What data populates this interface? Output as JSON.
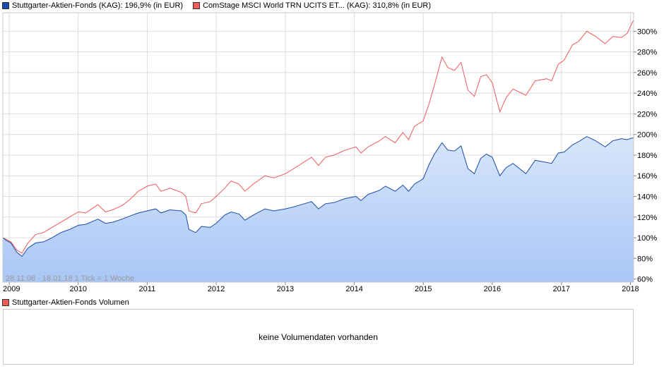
{
  "legend": {
    "series_a_label": "Stuttgarter-Aktien-Fonds (KAG): 196,9% (in EUR)",
    "series_b_label": "ComStage MSCI World TRN UCITS ET... (KAG): 310,8% (in EUR)"
  },
  "info_text": "28.11.08 - 18.01.18   1 Tick = 1 Woche",
  "volume": {
    "legend_label": "Stuttgarter-Aktien-Fonds Volumen",
    "empty_text": "keine Volumendaten vorhanden"
  },
  "colors": {
    "series_a": "#1a4aa8",
    "series_a_fill_top": "#d7e6fb",
    "series_a_fill_bottom": "#a9c6f6",
    "series_b": "#ee5a5a",
    "grid": "#dcdcdc"
  },
  "chart_data": {
    "type": "line",
    "x_start": "2008-11-28",
    "x_end": "2018-01-18",
    "x_tick_labels": [
      "2009",
      "2010",
      "2011",
      "2012",
      "2013",
      "2014",
      "2015",
      "2016",
      "2017",
      "2018"
    ],
    "y_tick_labels": [
      "60%",
      "80%",
      "100%",
      "120%",
      "140%",
      "160%",
      "180%",
      "200%",
      "220%",
      "240%",
      "260%",
      "280%",
      "300%"
    ],
    "ylim": [
      57,
      318
    ],
    "grid": true,
    "legend_position": "top-left",
    "series": [
      {
        "name": "Stuttgarter-Aktien-Fonds (KAG)",
        "style": "area",
        "points": [
          [
            "2008-11-28",
            100
          ],
          [
            "2008-12-20",
            97
          ],
          [
            "2009-01-10",
            95
          ],
          [
            "2009-02-10",
            86
          ],
          [
            "2009-03-09",
            82
          ],
          [
            "2009-04-10",
            90
          ],
          [
            "2009-05-20",
            95
          ],
          [
            "2009-07-01",
            96
          ],
          [
            "2009-08-15",
            100
          ],
          [
            "2009-10-01",
            105
          ],
          [
            "2009-11-15",
            108
          ],
          [
            "2010-01-01",
            112
          ],
          [
            "2010-02-10",
            113
          ],
          [
            "2010-04-15",
            118
          ],
          [
            "2010-05-25",
            114
          ],
          [
            "2010-07-01",
            115
          ],
          [
            "2010-08-20",
            118
          ],
          [
            "2010-10-01",
            121
          ],
          [
            "2010-11-15",
            124
          ],
          [
            "2011-01-01",
            126
          ],
          [
            "2011-02-15",
            128
          ],
          [
            "2011-03-15",
            124
          ],
          [
            "2011-05-01",
            127
          ],
          [
            "2011-07-01",
            126
          ],
          [
            "2011-07-25",
            122
          ],
          [
            "2011-08-10",
            108
          ],
          [
            "2011-09-15",
            105
          ],
          [
            "2011-10-15",
            111
          ],
          [
            "2011-12-01",
            110
          ],
          [
            "2012-01-01",
            114
          ],
          [
            "2012-02-15",
            122
          ],
          [
            "2012-03-20",
            125
          ],
          [
            "2012-05-01",
            123
          ],
          [
            "2012-06-01",
            117
          ],
          [
            "2012-07-15",
            122
          ],
          [
            "2012-09-15",
            128
          ],
          [
            "2012-11-01",
            126
          ],
          [
            "2013-01-01",
            128
          ],
          [
            "2013-02-15",
            130
          ],
          [
            "2013-05-20",
            135
          ],
          [
            "2013-06-25",
            128
          ],
          [
            "2013-08-01",
            133
          ],
          [
            "2013-09-15",
            134
          ],
          [
            "2013-11-15",
            138
          ],
          [
            "2014-01-10",
            140
          ],
          [
            "2014-02-05",
            136
          ],
          [
            "2014-03-15",
            142
          ],
          [
            "2014-05-15",
            146
          ],
          [
            "2014-06-15",
            150
          ],
          [
            "2014-08-05",
            145
          ],
          [
            "2014-09-15",
            151
          ],
          [
            "2014-10-15",
            145
          ],
          [
            "2014-11-15",
            152
          ],
          [
            "2014-12-31",
            157
          ],
          [
            "2015-02-01",
            171
          ],
          [
            "2015-03-01",
            181
          ],
          [
            "2015-04-10",
            192
          ],
          [
            "2015-05-10",
            185
          ],
          [
            "2015-06-15",
            184
          ],
          [
            "2015-07-20",
            189
          ],
          [
            "2015-08-25",
            167
          ],
          [
            "2015-09-28",
            162
          ],
          [
            "2015-11-01",
            177
          ],
          [
            "2015-12-01",
            181
          ],
          [
            "2016-01-01",
            178
          ],
          [
            "2016-02-10",
            160
          ],
          [
            "2016-03-15",
            168
          ],
          [
            "2016-04-20",
            172
          ],
          [
            "2016-06-27",
            162
          ],
          [
            "2016-08-15",
            175
          ],
          [
            "2016-10-15",
            173
          ],
          [
            "2016-11-10",
            172
          ],
          [
            "2016-12-15",
            182
          ],
          [
            "2017-01-15",
            183
          ],
          [
            "2017-03-01",
            190
          ],
          [
            "2017-04-01",
            193
          ],
          [
            "2017-05-15",
            198
          ],
          [
            "2017-07-01",
            194
          ],
          [
            "2017-08-20",
            188
          ],
          [
            "2017-10-01",
            194
          ],
          [
            "2017-11-15",
            196
          ],
          [
            "2017-12-15",
            195
          ],
          [
            "2018-01-18",
            197
          ]
        ]
      },
      {
        "name": "ComStage MSCI World TRN UCITS ET... (KAG)",
        "style": "line",
        "points": [
          [
            "2008-11-28",
            100
          ],
          [
            "2008-12-20",
            98
          ],
          [
            "2009-01-10",
            96
          ],
          [
            "2009-02-10",
            88
          ],
          [
            "2009-03-09",
            85
          ],
          [
            "2009-04-10",
            95
          ],
          [
            "2009-05-20",
            103
          ],
          [
            "2009-07-01",
            105
          ],
          [
            "2009-08-15",
            110
          ],
          [
            "2009-10-01",
            115
          ],
          [
            "2009-11-15",
            120
          ],
          [
            "2010-01-01",
            125
          ],
          [
            "2010-02-10",
            124
          ],
          [
            "2010-04-15",
            132
          ],
          [
            "2010-05-25",
            125
          ],
          [
            "2010-07-01",
            127
          ],
          [
            "2010-08-20",
            131
          ],
          [
            "2010-10-01",
            137
          ],
          [
            "2010-11-15",
            145
          ],
          [
            "2011-01-01",
            150
          ],
          [
            "2011-02-15",
            152
          ],
          [
            "2011-03-15",
            145
          ],
          [
            "2011-05-01",
            148
          ],
          [
            "2011-07-01",
            144
          ],
          [
            "2011-07-25",
            140
          ],
          [
            "2011-08-10",
            126
          ],
          [
            "2011-09-15",
            124
          ],
          [
            "2011-10-15",
            133
          ],
          [
            "2011-12-01",
            135
          ],
          [
            "2012-01-01",
            140
          ],
          [
            "2012-02-15",
            148
          ],
          [
            "2012-03-20",
            155
          ],
          [
            "2012-05-01",
            152
          ],
          [
            "2012-06-01",
            145
          ],
          [
            "2012-07-15",
            152
          ],
          [
            "2012-09-15",
            160
          ],
          [
            "2012-11-01",
            158
          ],
          [
            "2013-01-01",
            162
          ],
          [
            "2013-02-15",
            167
          ],
          [
            "2013-05-20",
            178
          ],
          [
            "2013-06-25",
            170
          ],
          [
            "2013-08-01",
            178
          ],
          [
            "2013-09-15",
            180
          ],
          [
            "2013-11-15",
            185
          ],
          [
            "2014-01-10",
            188
          ],
          [
            "2014-02-05",
            182
          ],
          [
            "2014-03-15",
            188
          ],
          [
            "2014-05-15",
            194
          ],
          [
            "2014-06-15",
            198
          ],
          [
            "2014-08-05",
            192
          ],
          [
            "2014-09-15",
            202
          ],
          [
            "2014-10-15",
            195
          ],
          [
            "2014-11-15",
            208
          ],
          [
            "2014-12-31",
            213
          ],
          [
            "2015-02-01",
            230
          ],
          [
            "2015-03-01",
            248
          ],
          [
            "2015-04-10",
            275
          ],
          [
            "2015-05-10",
            265
          ],
          [
            "2015-06-15",
            262
          ],
          [
            "2015-07-20",
            270
          ],
          [
            "2015-08-25",
            243
          ],
          [
            "2015-09-28",
            237
          ],
          [
            "2015-11-01",
            256
          ],
          [
            "2015-12-01",
            258
          ],
          [
            "2016-01-01",
            250
          ],
          [
            "2016-02-10",
            222
          ],
          [
            "2016-03-15",
            236
          ],
          [
            "2016-04-20",
            244
          ],
          [
            "2016-06-27",
            238
          ],
          [
            "2016-08-15",
            252
          ],
          [
            "2016-10-15",
            254
          ],
          [
            "2016-11-10",
            252
          ],
          [
            "2016-12-15",
            268
          ],
          [
            "2017-01-15",
            272
          ],
          [
            "2017-03-01",
            287
          ],
          [
            "2017-04-01",
            290
          ],
          [
            "2017-05-15",
            300
          ],
          [
            "2017-07-01",
            295
          ],
          [
            "2017-08-20",
            288
          ],
          [
            "2017-10-01",
            295
          ],
          [
            "2017-11-15",
            294
          ],
          [
            "2017-12-15",
            298
          ],
          [
            "2018-01-18",
            311
          ]
        ]
      }
    ]
  }
}
